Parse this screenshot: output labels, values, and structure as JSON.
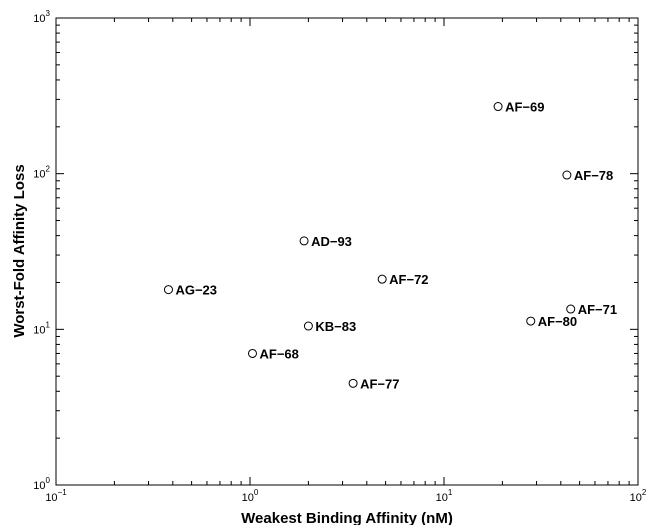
{
  "chart_data": {
    "type": "scatter",
    "title": "",
    "xlabel": "Weakest Binding Affinity (nM)",
    "ylabel": "Worst-Fold Affinity Loss",
    "xscale": "log",
    "yscale": "log",
    "xlim": [
      0.1,
      100
    ],
    "ylim": [
      1,
      1000
    ],
    "grid": false,
    "x_ticks": [
      {
        "base": "10",
        "exp": "−1"
      },
      {
        "base": "10",
        "exp": "0"
      },
      {
        "base": "10",
        "exp": "1"
      },
      {
        "base": "10",
        "exp": "2"
      }
    ],
    "y_ticks": [
      {
        "base": "10",
        "exp": "0"
      },
      {
        "base": "10",
        "exp": "1"
      },
      {
        "base": "10",
        "exp": "2"
      },
      {
        "base": "10",
        "exp": "3"
      }
    ],
    "points": [
      {
        "label": "AF−69",
        "x": 19,
        "y": 270
      },
      {
        "label": "AF−78",
        "x": 43,
        "y": 98
      },
      {
        "label": "AD−93",
        "x": 1.9,
        "y": 37
      },
      {
        "label": "AF−72",
        "x": 4.8,
        "y": 21
      },
      {
        "label": "AG−23",
        "x": 0.38,
        "y": 18
      },
      {
        "label": "AF−71",
        "x": 45,
        "y": 13.5
      },
      {
        "label": "AF−80",
        "x": 28,
        "y": 11.3
      },
      {
        "label": "KB−83",
        "x": 2.0,
        "y": 10.5
      },
      {
        "label": "AF−68",
        "x": 1.03,
        "y": 7.0
      },
      {
        "label": "AF−77",
        "x": 3.4,
        "y": 4.5
      }
    ]
  }
}
